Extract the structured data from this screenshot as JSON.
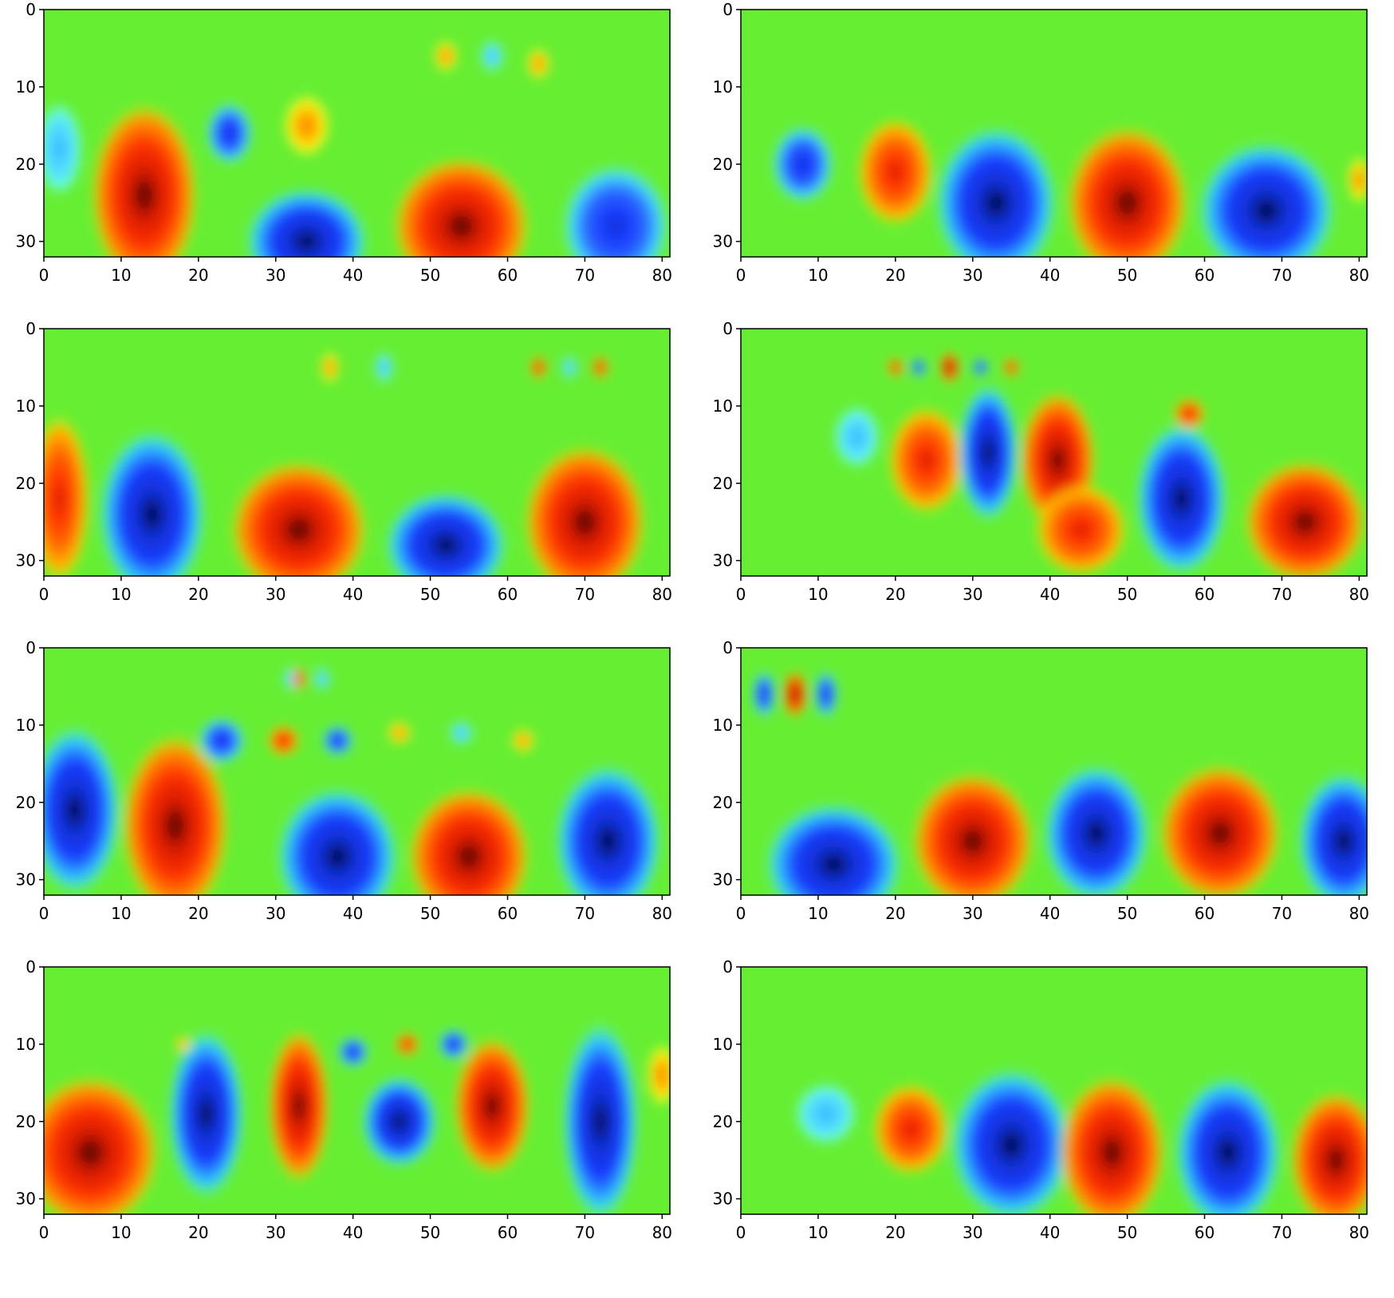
{
  "chart_data": [
    {
      "type": "heatmap",
      "panel": "top-left",
      "xlim": [
        0,
        81
      ],
      "ylim": [
        32,
        0
      ],
      "xticks": [
        "0",
        "10",
        "20",
        "30",
        "40",
        "50",
        "60",
        "70",
        "80"
      ],
      "yticks": [
        "0",
        "10",
        "20",
        "30"
      ],
      "blobs": [
        {
          "x": 2,
          "y": 18,
          "rx": 3,
          "ry": 6,
          "value": -0.5
        },
        {
          "x": 13,
          "y": 24,
          "rx": 7,
          "ry": 12,
          "value": 0.9
        },
        {
          "x": 24,
          "y": 16,
          "rx": 3,
          "ry": 4,
          "value": -0.7
        },
        {
          "x": 34,
          "y": 15,
          "rx": 3,
          "ry": 4,
          "value": 0.5
        },
        {
          "x": 34,
          "y": 30,
          "rx": 8,
          "ry": 7,
          "value": -0.9
        },
        {
          "x": 54,
          "y": 28,
          "rx": 9,
          "ry": 9,
          "value": 0.95
        },
        {
          "x": 74,
          "y": 28,
          "rx": 7,
          "ry": 8,
          "value": -0.7
        },
        {
          "x": 52,
          "y": 6,
          "rx": 1.5,
          "ry": 2,
          "value": 0.15
        },
        {
          "x": 58,
          "y": 6,
          "rx": 1.5,
          "ry": 2,
          "value": -0.15
        },
        {
          "x": 64,
          "y": 7,
          "rx": 1.5,
          "ry": 2,
          "value": 0.15
        }
      ]
    },
    {
      "type": "heatmap",
      "panel": "top-right",
      "xlim": [
        0,
        81
      ],
      "ylim": [
        32,
        0
      ],
      "xticks": [
        "0",
        "10",
        "20",
        "30",
        "40",
        "50",
        "60",
        "70",
        "80"
      ],
      "yticks": [
        "0",
        "10",
        "20",
        "30"
      ],
      "blobs": [
        {
          "x": 8,
          "y": 20,
          "rx": 4,
          "ry": 5,
          "value": -0.6
        },
        {
          "x": 20,
          "y": 21,
          "rx": 5,
          "ry": 7,
          "value": 0.85
        },
        {
          "x": 33,
          "y": 25,
          "rx": 8,
          "ry": 10,
          "value": -0.95
        },
        {
          "x": 50,
          "y": 25,
          "rx": 8,
          "ry": 10,
          "value": 1.0
        },
        {
          "x": 68,
          "y": 26,
          "rx": 9,
          "ry": 9,
          "value": -0.95
        },
        {
          "x": 80,
          "y": 22,
          "rx": 1.5,
          "ry": 3,
          "value": 0.4
        }
      ]
    },
    {
      "type": "heatmap",
      "panel": "middle-left",
      "xlim": [
        0,
        81
      ],
      "ylim": [
        32,
        0
      ],
      "xticks": [
        "0",
        "10",
        "20",
        "30",
        "40",
        "50",
        "60",
        "70",
        "80"
      ],
      "yticks": [
        "0",
        "10",
        "20",
        "30"
      ],
      "blobs": [
        {
          "x": 2,
          "y": 22,
          "rx": 4,
          "ry": 11,
          "value": 0.8
        },
        {
          "x": 14,
          "y": 24,
          "rx": 7,
          "ry": 11,
          "value": -0.95
        },
        {
          "x": 33,
          "y": 26,
          "rx": 9,
          "ry": 9,
          "value": 1.0
        },
        {
          "x": 52,
          "y": 28,
          "rx": 8,
          "ry": 7,
          "value": -0.95
        },
        {
          "x": 70,
          "y": 25,
          "rx": 8,
          "ry": 10,
          "value": 0.95
        },
        {
          "x": 64,
          "y": 5,
          "rx": 1,
          "ry": 1.5,
          "value": 0.6
        },
        {
          "x": 68,
          "y": 5,
          "rx": 1,
          "ry": 1.5,
          "value": -0.4
        },
        {
          "x": 72,
          "y": 5,
          "rx": 1,
          "ry": 1.5,
          "value": 0.7
        },
        {
          "x": 37,
          "y": 5,
          "rx": 1.2,
          "ry": 2,
          "value": 0.2
        },
        {
          "x": 44,
          "y": 5,
          "rx": 1.2,
          "ry": 2,
          "value": -0.2
        }
      ]
    },
    {
      "type": "heatmap",
      "panel": "middle-right",
      "xlim": [
        0,
        81
      ],
      "ylim": [
        32,
        0
      ],
      "xticks": [
        "0",
        "10",
        "20",
        "30",
        "40",
        "50",
        "60",
        "70",
        "80"
      ],
      "yticks": [
        "0",
        "10",
        "20",
        "30"
      ],
      "blobs": [
        {
          "x": 15,
          "y": 14,
          "rx": 3,
          "ry": 4,
          "value": -0.45
        },
        {
          "x": 24,
          "y": 17,
          "rx": 5,
          "ry": 7,
          "value": 0.85
        },
        {
          "x": 32,
          "y": 16,
          "rx": 4,
          "ry": 9,
          "value": -0.95
        },
        {
          "x": 41,
          "y": 17,
          "rx": 5,
          "ry": 9,
          "value": 1.0
        },
        {
          "x": 44,
          "y": 26,
          "rx": 6,
          "ry": 6,
          "value": 0.7
        },
        {
          "x": 57,
          "y": 22,
          "rx": 6,
          "ry": 10,
          "value": -0.9
        },
        {
          "x": 73,
          "y": 25,
          "rx": 8,
          "ry": 8,
          "value": 0.9
        },
        {
          "x": 20,
          "y": 5,
          "rx": 1,
          "ry": 1.2,
          "value": 0.7
        },
        {
          "x": 23,
          "y": 5,
          "rx": 1,
          "ry": 1.2,
          "value": -0.8
        },
        {
          "x": 27,
          "y": 5,
          "rx": 1.2,
          "ry": 2,
          "value": 1.0
        },
        {
          "x": 31,
          "y": 5,
          "rx": 1,
          "ry": 1.2,
          "value": -0.8
        },
        {
          "x": 35,
          "y": 5,
          "rx": 1,
          "ry": 1.2,
          "value": 0.7
        },
        {
          "x": 58,
          "y": 11,
          "rx": 2,
          "ry": 2,
          "value": 0.6
        }
      ]
    },
    {
      "type": "heatmap",
      "panel": "lower-left",
      "xlim": [
        0,
        81
      ],
      "ylim": [
        32,
        0
      ],
      "xticks": [
        "0",
        "10",
        "20",
        "30",
        "40",
        "50",
        "60",
        "70",
        "80"
      ],
      "yticks": [
        "0",
        "10",
        "20",
        "30"
      ],
      "blobs": [
        {
          "x": 4,
          "y": 21,
          "rx": 6,
          "ry": 11,
          "value": -0.95
        },
        {
          "x": 17,
          "y": 23,
          "rx": 7,
          "ry": 12,
          "value": 0.9
        },
        {
          "x": 23,
          "y": 12,
          "rx": 3,
          "ry": 3,
          "value": -0.8
        },
        {
          "x": 31,
          "y": 12,
          "rx": 2,
          "ry": 2,
          "value": 0.7
        },
        {
          "x": 38,
          "y": 12,
          "rx": 2,
          "ry": 2,
          "value": -0.7
        },
        {
          "x": 46,
          "y": 11,
          "rx": 1.5,
          "ry": 1.5,
          "value": 0.5
        },
        {
          "x": 54,
          "y": 11,
          "rx": 1.5,
          "ry": 1.5,
          "value": -0.3
        },
        {
          "x": 62,
          "y": 12,
          "rx": 1.5,
          "ry": 1.5,
          "value": 0.4
        },
        {
          "x": 38,
          "y": 27,
          "rx": 8,
          "ry": 9,
          "value": -1.0
        },
        {
          "x": 55,
          "y": 27,
          "rx": 8,
          "ry": 9,
          "value": 1.0
        },
        {
          "x": 73,
          "y": 25,
          "rx": 7,
          "ry": 10,
          "value": -0.95
        },
        {
          "x": 32,
          "y": 4,
          "rx": 1,
          "ry": 1.5,
          "value": -0.5
        },
        {
          "x": 33,
          "y": 4,
          "rx": 0.8,
          "ry": 1.5,
          "value": 0.8
        },
        {
          "x": 36,
          "y": 4,
          "rx": 1,
          "ry": 1.5,
          "value": -0.5
        }
      ]
    },
    {
      "type": "heatmap",
      "panel": "lower-right",
      "xlim": [
        0,
        81
      ],
      "ylim": [
        32,
        0
      ],
      "xticks": [
        "0",
        "10",
        "20",
        "30",
        "40",
        "50",
        "60",
        "70",
        "80"
      ],
      "yticks": [
        "0",
        "10",
        "20",
        "30"
      ],
      "blobs": [
        {
          "x": 3,
          "y": 6,
          "rx": 1.5,
          "ry": 3,
          "value": -0.85
        },
        {
          "x": 7,
          "y": 6,
          "rx": 1.5,
          "ry": 3,
          "value": 1.0
        },
        {
          "x": 11,
          "y": 6,
          "rx": 1.5,
          "ry": 3,
          "value": -0.85
        },
        {
          "x": 12,
          "y": 28,
          "rx": 9,
          "ry": 8,
          "value": -0.9
        },
        {
          "x": 30,
          "y": 25,
          "rx": 8,
          "ry": 9,
          "value": 0.95
        },
        {
          "x": 46,
          "y": 24,
          "rx": 7,
          "ry": 9,
          "value": -1.0
        },
        {
          "x": 62,
          "y": 24,
          "rx": 8,
          "ry": 9,
          "value": 1.0
        },
        {
          "x": 78,
          "y": 25,
          "rx": 6,
          "ry": 9,
          "value": -0.95
        }
      ]
    },
    {
      "type": "heatmap",
      "panel": "bottom-left",
      "xlim": [
        0,
        81
      ],
      "ylim": [
        32,
        0
      ],
      "xticks": [
        "0",
        "10",
        "20",
        "30",
        "40",
        "50",
        "60",
        "70",
        "80"
      ],
      "yticks": [
        "0",
        "10",
        "20",
        "30"
      ],
      "blobs": [
        {
          "x": 6,
          "y": 24,
          "rx": 9,
          "ry": 10,
          "value": 0.95
        },
        {
          "x": 21,
          "y": 19,
          "rx": 5,
          "ry": 11,
          "value": -0.95
        },
        {
          "x": 33,
          "y": 18,
          "rx": 4,
          "ry": 10,
          "value": 1.0
        },
        {
          "x": 40,
          "y": 11,
          "rx": 2,
          "ry": 2,
          "value": -0.8
        },
        {
          "x": 47,
          "y": 10,
          "rx": 1.5,
          "ry": 1.5,
          "value": 0.6
        },
        {
          "x": 53,
          "y": 10,
          "rx": 2,
          "ry": 2,
          "value": -0.8
        },
        {
          "x": 46,
          "y": 20,
          "rx": 5,
          "ry": 6,
          "value": -0.95
        },
        {
          "x": 58,
          "y": 18,
          "rx": 5,
          "ry": 9,
          "value": 0.95
        },
        {
          "x": 72,
          "y": 20,
          "rx": 5,
          "ry": 13,
          "value": -0.9
        },
        {
          "x": 80,
          "y": 14,
          "rx": 2,
          "ry": 4,
          "value": 0.5
        },
        {
          "x": 18,
          "y": 10,
          "rx": 1,
          "ry": 1,
          "value": 0.4
        }
      ]
    },
    {
      "type": "heatmap",
      "panel": "bottom-right",
      "xlim": [
        0,
        81
      ],
      "ylim": [
        32,
        0
      ],
      "xticks": [
        "0",
        "10",
        "20",
        "30",
        "40",
        "50",
        "60",
        "70",
        "80"
      ],
      "yticks": [
        "0",
        "10",
        "20",
        "30"
      ],
      "blobs": [
        {
          "x": 11,
          "y": 19,
          "rx": 4,
          "ry": 4,
          "value": -0.3
        },
        {
          "x": 22,
          "y": 21,
          "rx": 5,
          "ry": 6,
          "value": 0.6
        },
        {
          "x": 35,
          "y": 23,
          "rx": 8,
          "ry": 10,
          "value": -0.95
        },
        {
          "x": 48,
          "y": 24,
          "rx": 7,
          "ry": 10,
          "value": 1.0
        },
        {
          "x": 63,
          "y": 24,
          "rx": 7,
          "ry": 10,
          "value": -1.0
        },
        {
          "x": 77,
          "y": 25,
          "rx": 6,
          "ry": 9,
          "value": 0.9
        }
      ]
    }
  ]
}
